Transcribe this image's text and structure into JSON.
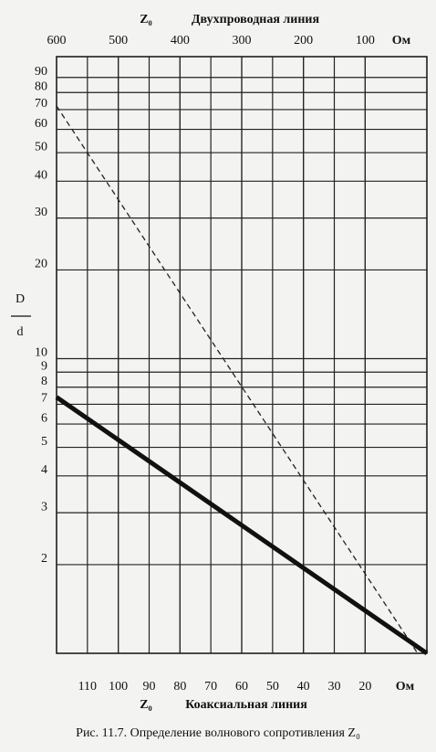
{
  "chart_data": {
    "type": "nomogram",
    "title": "Рис. 11.7. Определение волнового сопротивления Z₀",
    "y_label": {
      "numerator": "D",
      "denominator": "d"
    },
    "top_axis": {
      "symbol": "Z₀",
      "label": "Двухпроводная линия",
      "unit": "Ом",
      "xlim": [
        600,
        0
      ],
      "xticks": [
        600,
        500,
        400,
        300,
        200,
        100
      ]
    },
    "bottom_axis": {
      "symbol": "Z₀",
      "label": "Коаксиальная линия",
      "unit": "Ом",
      "xlim": [
        120,
        0
      ],
      "xticks": [
        110,
        100,
        90,
        80,
        70,
        60,
        50,
        40,
        30,
        20
      ]
    },
    "ylim": [
      1,
      100
    ],
    "log_y": true,
    "yticks": [
      2,
      3,
      4,
      5,
      6,
      7,
      8,
      9,
      10,
      20,
      30,
      40,
      50,
      60,
      70,
      80,
      90
    ],
    "grid": true,
    "series": [
      {
        "axis": "top",
        "x": [
          600,
          15
        ],
        "values": [
          72,
          1
        ],
        "color": "#222",
        "dashed": true
      },
      {
        "axis": "bottom",
        "x": [
          120,
          0
        ],
        "values": [
          7.4,
          1
        ],
        "color": "#111",
        "dashed": false
      }
    ]
  }
}
